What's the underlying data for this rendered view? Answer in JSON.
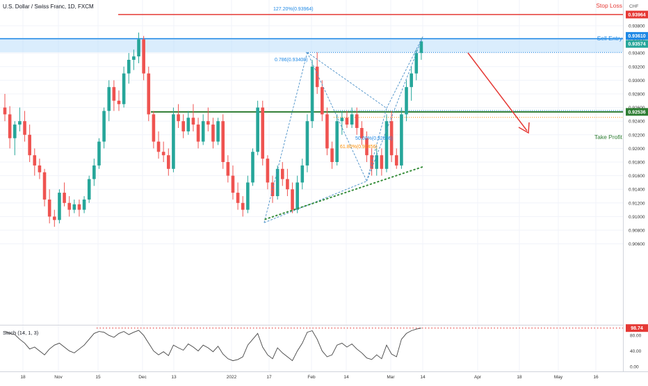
{
  "header": {
    "symbol_title": "U.S. Dollar / Swiss Franc, 1D, FXCM"
  },
  "price_axis": {
    "currency": "CHF",
    "ticks": [
      "0.93800",
      "0.93600",
      "0.93400",
      "0.93200",
      "0.93000",
      "0.92800",
      "0.92600",
      "0.92400",
      "0.92200",
      "0.92000",
      "0.91800",
      "0.91600",
      "0.91400",
      "0.91200",
      "0.91000",
      "0.90800",
      "0.90600"
    ]
  },
  "date_axis": {
    "ticks": [
      "18",
      "Nov",
      "15",
      "Dec",
      "13",
      "2022",
      "17",
      "Feb",
      "14",
      "Mar",
      "14",
      "Apr",
      "18",
      "May",
      "16"
    ]
  },
  "levels": {
    "stop_loss": {
      "label": "Stop Loss",
      "price_tag": "0.93964",
      "value": 0.93964,
      "color": "#e53935"
    },
    "sell_entry": {
      "label": "Sell Entry",
      "price_tag": "0.93610",
      "value": 0.9361,
      "color": "#1e88e5"
    },
    "current_price": {
      "price_tag": "0.93574",
      "value": 0.93574,
      "color": "#26a69a"
    },
    "take_profit": {
      "label": "Take Profit",
      "price_tag": "0.92536",
      "value": 0.92536,
      "color": "#2e7d32"
    }
  },
  "fib_labels": {
    "ext_1272": "127.20%(0.93964)",
    "ret_786": "0.786(0.93408)",
    "ret_50": "50.00%(0.92536)",
    "ret_618": "61.80%(0.92456)"
  },
  "stoch": {
    "title": "Stoch (14, 1, 3)",
    "last_value": "98.74",
    "ticks": [
      "80.00",
      "40.00",
      "0.00"
    ]
  },
  "chart_data": {
    "type": "candlestick",
    "title": "U.S. Dollar / Swiss Franc, 1D, FXCM",
    "ylim": [
      0.905,
      0.9405
    ],
    "annotations": {
      "stop_loss": 0.93964,
      "sell_entry": 0.9361,
      "take_profit": 0.92536,
      "sell_zone": [
        0.9341,
        0.9362
      ],
      "fib_786": 0.93408,
      "fib_50": 0.92536,
      "fib_618": 0.92456,
      "support_trendline": [
        [
          0.9095,
          "17 Jan"
        ],
        [
          0.9172,
          "14 Mar"
        ]
      ]
    },
    "candles": [
      [
        0.926,
        0.928,
        0.924,
        0.925
      ],
      [
        0.925,
        0.9262,
        0.92,
        0.9215
      ],
      [
        0.9215,
        0.924,
        0.919,
        0.9235
      ],
      [
        0.9235,
        0.926,
        0.9225,
        0.924
      ],
      [
        0.924,
        0.9255,
        0.921,
        0.922
      ],
      [
        0.922,
        0.9235,
        0.918,
        0.919
      ],
      [
        0.919,
        0.92,
        0.916,
        0.9175
      ],
      [
        0.9175,
        0.9185,
        0.9155,
        0.9165
      ],
      [
        0.9165,
        0.917,
        0.9115,
        0.9125
      ],
      [
        0.9125,
        0.914,
        0.909,
        0.91
      ],
      [
        0.91,
        0.911,
        0.9085,
        0.9095
      ],
      [
        0.9095,
        0.914,
        0.909,
        0.9135
      ],
      [
        0.9135,
        0.915,
        0.9115,
        0.912
      ],
      [
        0.912,
        0.913,
        0.91,
        0.911
      ],
      [
        0.911,
        0.9125,
        0.9105,
        0.9118
      ],
      [
        0.9118,
        0.9125,
        0.91,
        0.911
      ],
      [
        0.911,
        0.913,
        0.9105,
        0.9125
      ],
      [
        0.9125,
        0.916,
        0.912,
        0.9155
      ],
      [
        0.9155,
        0.9185,
        0.9145,
        0.9175
      ],
      [
        0.9175,
        0.9215,
        0.917,
        0.921
      ],
      [
        0.921,
        0.926,
        0.92,
        0.9255
      ],
      [
        0.9255,
        0.93,
        0.924,
        0.929
      ],
      [
        0.929,
        0.93,
        0.9255,
        0.927
      ],
      [
        0.927,
        0.9285,
        0.9255,
        0.9265
      ],
      [
        0.9265,
        0.932,
        0.926,
        0.931
      ],
      [
        0.931,
        0.934,
        0.9295,
        0.933
      ],
      [
        0.933,
        0.9345,
        0.9315,
        0.9335
      ],
      [
        0.9335,
        0.937,
        0.9325,
        0.936
      ],
      [
        0.936,
        0.9365,
        0.93,
        0.931
      ],
      [
        0.931,
        0.932,
        0.924,
        0.925
      ],
      [
        0.925,
        0.9255,
        0.92,
        0.921
      ],
      [
        0.921,
        0.9225,
        0.9185,
        0.9195
      ],
      [
        0.9195,
        0.921,
        0.918,
        0.919
      ],
      [
        0.919,
        0.92,
        0.916,
        0.917
      ],
      [
        0.917,
        0.926,
        0.9165,
        0.925
      ],
      [
        0.925,
        0.9265,
        0.923,
        0.924
      ],
      [
        0.924,
        0.925,
        0.9215,
        0.9225
      ],
      [
        0.9225,
        0.9255,
        0.922,
        0.9245
      ],
      [
        0.9245,
        0.9265,
        0.9225,
        0.9235
      ],
      [
        0.9235,
        0.9245,
        0.92,
        0.921
      ],
      [
        0.921,
        0.925,
        0.9205,
        0.924
      ],
      [
        0.924,
        0.926,
        0.9225,
        0.9235
      ],
      [
        0.9235,
        0.9245,
        0.92,
        0.921
      ],
      [
        0.921,
        0.9245,
        0.9205,
        0.924
      ],
      [
        0.924,
        0.925,
        0.917,
        0.918
      ],
      [
        0.918,
        0.919,
        0.915,
        0.916
      ],
      [
        0.916,
        0.9175,
        0.9125,
        0.9135
      ],
      [
        0.9135,
        0.915,
        0.911,
        0.912
      ],
      [
        0.912,
        0.913,
        0.91,
        0.911
      ],
      [
        0.911,
        0.916,
        0.9105,
        0.915
      ],
      [
        0.915,
        0.92,
        0.9145,
        0.9195
      ],
      [
        0.9195,
        0.927,
        0.919,
        0.926
      ],
      [
        0.926,
        0.927,
        0.9175,
        0.9185
      ],
      [
        0.9185,
        0.919,
        0.914,
        0.915
      ],
      [
        0.915,
        0.916,
        0.912,
        0.913
      ],
      [
        0.913,
        0.9175,
        0.9125,
        0.917
      ],
      [
        0.917,
        0.918,
        0.9145,
        0.9155
      ],
      [
        0.9155,
        0.917,
        0.913,
        0.914
      ],
      [
        0.914,
        0.915,
        0.9105,
        0.911
      ],
      [
        0.911,
        0.916,
        0.9105,
        0.915
      ],
      [
        0.915,
        0.9185,
        0.914,
        0.9175
      ],
      [
        0.9175,
        0.925,
        0.9165,
        0.924
      ],
      [
        0.924,
        0.933,
        0.923,
        0.932
      ],
      [
        0.932,
        0.9341,
        0.928,
        0.929
      ],
      [
        0.929,
        0.93,
        0.924,
        0.925
      ],
      [
        0.925,
        0.926,
        0.919,
        0.92
      ],
      [
        0.92,
        0.921,
        0.917,
        0.918
      ],
      [
        0.918,
        0.925,
        0.9175,
        0.924
      ],
      [
        0.924,
        0.9255,
        0.922,
        0.9245
      ],
      [
        0.9245,
        0.9255,
        0.923,
        0.9235
      ],
      [
        0.9235,
        0.926,
        0.923,
        0.925
      ],
      [
        0.925,
        0.926,
        0.922,
        0.923
      ],
      [
        0.923,
        0.924,
        0.9205,
        0.9215
      ],
      [
        0.9215,
        0.9225,
        0.918,
        0.919
      ],
      [
        0.919,
        0.92,
        0.916,
        0.917
      ],
      [
        0.917,
        0.92,
        0.916,
        0.919
      ],
      [
        0.919,
        0.92,
        0.916,
        0.917
      ],
      [
        0.917,
        0.925,
        0.9165,
        0.924
      ],
      [
        0.924,
        0.9255,
        0.918,
        0.919
      ],
      [
        0.919,
        0.92,
        0.917,
        0.9175
      ],
      [
        0.9175,
        0.926,
        0.917,
        0.925
      ],
      [
        0.925,
        0.93,
        0.924,
        0.929
      ],
      [
        0.929,
        0.932,
        0.927,
        0.931
      ],
      [
        0.931,
        0.9345,
        0.93,
        0.934
      ],
      [
        0.934,
        0.9362,
        0.933,
        0.9357
      ]
    ],
    "stoch": [
      90,
      85,
      82,
      70,
      60,
      45,
      50,
      40,
      30,
      45,
      55,
      60,
      50,
      40,
      35,
      45,
      55,
      70,
      85,
      90,
      88,
      80,
      75,
      85,
      90,
      82,
      88,
      93,
      80,
      60,
      40,
      30,
      38,
      28,
      55,
      48,
      42,
      58,
      50,
      40,
      55,
      48,
      38,
      52,
      32,
      20,
      15,
      18,
      25,
      55,
      70,
      85,
      50,
      30,
      20,
      48,
      35,
      25,
      15,
      40,
      60,
      88,
      92,
      70,
      40,
      25,
      30,
      55,
      60,
      50,
      58,
      45,
      35,
      22,
      18,
      30,
      20,
      55,
      32,
      25,
      70,
      85,
      92,
      96,
      98.74
    ]
  }
}
